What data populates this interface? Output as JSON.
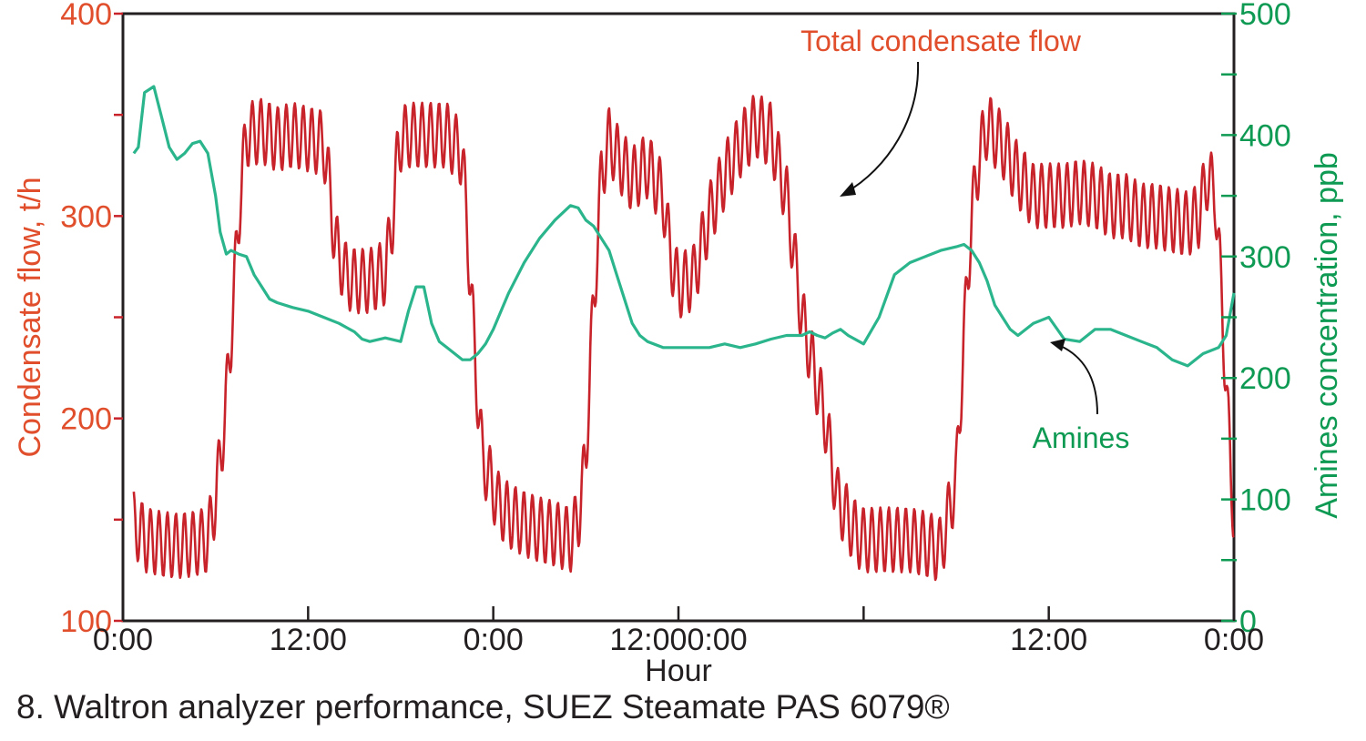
{
  "caption": "8. Waltron analyzer performance, SUEZ Steamate PAS 6079®",
  "colors": {
    "flow": "#c8232b",
    "flow_text": "#e04e2c",
    "amines": "#2bb58c",
    "amines_text": "#0e9a53",
    "axis": "#231f20"
  },
  "chart_data": {
    "type": "line",
    "title": "",
    "xlabel": "Hour",
    "ylabel_left": "Condensate flow, t/h",
    "ylabel_right": "Amines concentration, ppb",
    "x_unit": "hours",
    "xlim": [
      0,
      72
    ],
    "ylim_left": [
      100,
      400
    ],
    "ylim_right": [
      0,
      500
    ],
    "x_ticks": [
      {
        "x": 0,
        "label": "0:00"
      },
      {
        "x": 12,
        "label": "12:00"
      },
      {
        "x": 24,
        "label": "0:00"
      },
      {
        "x": 36,
        "label": "12:000:00"
      },
      {
        "x": 48,
        "label": ""
      },
      {
        "x": 60,
        "label": "12:00"
      },
      {
        "x": 72,
        "label": "0:00"
      }
    ],
    "y_ticks_left": [
      {
        "y": 100,
        "label": "100"
      },
      {
        "y": 150,
        "label": ""
      },
      {
        "y": 200,
        "label": "200"
      },
      {
        "y": 250,
        "label": ""
      },
      {
        "y": 300,
        "label": "300"
      },
      {
        "y": 350,
        "label": ""
      },
      {
        "y": 400,
        "label": "400"
      }
    ],
    "y_ticks_right": [
      {
        "y": 0,
        "label": "0"
      },
      {
        "y": 50,
        "label": ""
      },
      {
        "y": 100,
        "label": "100"
      },
      {
        "y": 150,
        "label": ""
      },
      {
        "y": 200,
        "label": "200"
      },
      {
        "y": 250,
        "label": ""
      },
      {
        "y": 300,
        "label": "300"
      },
      {
        "y": 350,
        "label": ""
      },
      {
        "y": 400,
        "label": "400"
      },
      {
        "y": 450,
        "label": ""
      },
      {
        "y": 500,
        "label": "500"
      }
    ],
    "grid": false,
    "series": [
      {
        "name": "Total condensate flow",
        "axis": "left",
        "oscillating": true,
        "x": [
          0.7,
          1.5,
          2.5,
          3.5,
          4.5,
          5.5,
          6.0,
          6.6,
          7.0,
          7.6,
          8.0,
          9.0,
          10.0,
          11.0,
          12.0,
          13.0,
          13.3,
          13.7,
          14.0,
          14.5,
          15.0,
          16.0,
          17.0,
          17.5,
          17.8,
          18.0,
          18.5,
          19.0,
          20.0,
          21.0,
          22.0,
          22.5,
          22.9,
          23.3,
          23.8,
          24.3,
          25.0,
          26.0,
          27.0,
          28.0,
          29.0,
          29.5,
          30.0,
          30.3,
          30.7,
          31.0,
          31.5,
          32.0,
          33.0,
          34.0,
          35.0,
          35.5,
          36.0,
          37.0,
          38.0,
          39.0,
          40.0,
          41.0,
          42.0,
          43.0,
          44.0,
          45.5,
          46.3,
          47.0,
          47.5,
          48.0,
          49.0,
          50.0,
          51.0,
          52.0,
          53.0,
          54.0,
          54.5,
          55.0,
          55.5,
          56.0,
          57.0,
          58.0,
          59.0,
          60.0,
          61.0,
          62.0,
          63.0,
          64.0,
          65.0,
          66.0,
          67.0,
          68.0,
          69.0,
          69.7,
          70.3,
          70.8,
          71.2,
          71.6,
          72.0
        ],
        "y": [
          148,
          140,
          138,
          137,
          138,
          140,
          160,
          200,
          240,
          310,
          340,
          342,
          338,
          340,
          338,
          336,
          320,
          290,
          280,
          270,
          268,
          268,
          272,
          300,
          330,
          338,
          340,
          340,
          340,
          340,
          330,
          270,
          220,
          180,
          170,
          158,
          152,
          148,
          145,
          143,
          140,
          150,
          180,
          230,
          280,
          320,
          338,
          330,
          318,
          325,
          310,
          280,
          265,
          270,
          300,
          320,
          335,
          345,
          340,
          310,
          250,
          200,
          160,
          150,
          143,
          140,
          140,
          140,
          140,
          138,
          135,
          170,
          240,
          300,
          330,
          345,
          335,
          320,
          310,
          310,
          310,
          312,
          310,
          305,
          305,
          300,
          300,
          298,
          296,
          300,
          320,
          310,
          260,
          200,
          150
        ]
      },
      {
        "name": "Amines",
        "axis": "right",
        "oscillating": false,
        "x": [
          0.7,
          1.0,
          1.4,
          2.0,
          2.5,
          3.0,
          3.5,
          4.0,
          4.5,
          5.0,
          5.5,
          6.0,
          6.3,
          6.7,
          7.0,
          7.5,
          8.0,
          8.5,
          9.0,
          9.5,
          10.0,
          11.0,
          12.0,
          13.0,
          14.0,
          15.0,
          15.5,
          16.0,
          17.0,
          18.0,
          18.5,
          19.0,
          19.5,
          20.0,
          20.5,
          21.0,
          21.5,
          22.0,
          22.5,
          23.0,
          23.5,
          24.0,
          25.0,
          26.0,
          27.0,
          28.0,
          29.0,
          29.5,
          30.0,
          30.5,
          31.0,
          31.5,
          32.0,
          32.5,
          33.0,
          33.5,
          34.0,
          35.0,
          36.0,
          37.0,
          38.0,
          39.0,
          40.0,
          41.0,
          42.0,
          43.0,
          44.0,
          44.5,
          45.0,
          45.5,
          46.0,
          46.5,
          47.0,
          48.0,
          49.0,
          50.0,
          51.0,
          52.0,
          53.0,
          54.0,
          54.5,
          55.0,
          55.5,
          56.0,
          56.5,
          57.0,
          57.5,
          58.0,
          59.0,
          60.0,
          61.0,
          62.0,
          63.0,
          64.0,
          65.0,
          66.0,
          67.0,
          68.0,
          69.0,
          70.0,
          71.0,
          71.5,
          72.0
        ],
        "y": [
          385,
          390,
          435,
          440,
          415,
          390,
          380,
          385,
          393,
          395,
          385,
          350,
          320,
          302,
          305,
          302,
          300,
          285,
          275,
          265,
          262,
          258,
          255,
          250,
          245,
          238,
          232,
          230,
          233,
          230,
          255,
          275,
          275,
          245,
          230,
          225,
          220,
          215,
          215,
          220,
          228,
          240,
          270,
          295,
          315,
          330,
          342,
          340,
          330,
          325,
          315,
          305,
          285,
          265,
          245,
          235,
          230,
          225,
          225,
          225,
          225,
          228,
          225,
          228,
          232,
          235,
          235,
          238,
          235,
          233,
          237,
          240,
          235,
          228,
          250,
          285,
          295,
          300,
          305,
          308,
          310,
          305,
          295,
          280,
          260,
          250,
          240,
          235,
          245,
          250,
          232,
          230,
          240,
          240,
          235,
          230,
          225,
          215,
          210,
          220,
          225,
          235,
          270
        ]
      }
    ],
    "annotations": [
      {
        "text": "Total condensate flow",
        "target_series": "Total condensate flow",
        "placement": "top-right"
      },
      {
        "text": "Amines",
        "target_series": "Amines",
        "placement": "right"
      }
    ]
  }
}
